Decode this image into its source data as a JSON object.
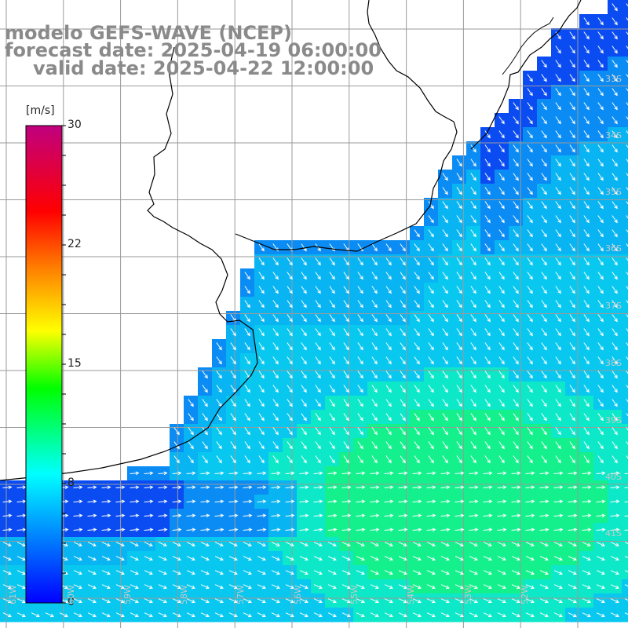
{
  "titles": {
    "line1": "modelo GEFS-WAVE (NCEP)",
    "line2": "forecast date: 2025-04-19 06:00:00",
    "line3": "valid date: 2025-04-22 12:00:00"
  },
  "colorbar": {
    "unit": "[m/s]",
    "ticks": [
      "30",
      "22",
      "15",
      "8",
      "0"
    ],
    "stops": [
      "#0000ff",
      "#00ffff",
      "#00ff00",
      "#ffff00",
      "#ff8000",
      "#ff0000",
      "#c0007f"
    ]
  },
  "lat_labels": [
    "33S",
    "34S",
    "35S",
    "36S",
    "37S",
    "38S",
    "39S",
    "40S",
    "41S"
  ],
  "lon_labels": [
    "61W",
    "60W",
    "59W",
    "58W",
    "57W",
    "56W",
    "55W",
    "54W",
    "53W",
    "52W"
  ],
  "colors": {
    "land": "#ffffff",
    "grid": "#9a9a9a",
    "coast": "#000000",
    "arrow": "#ffffff",
    "low_wind": "#0a4cf2",
    "mid_wind": "#08c8f0",
    "high_wind": "#14f08c"
  }
}
